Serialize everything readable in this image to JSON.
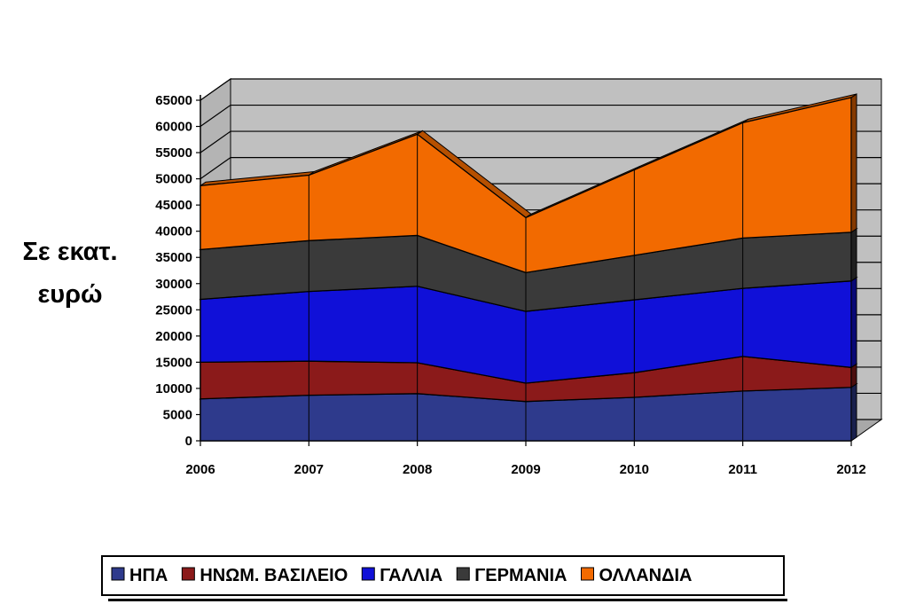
{
  "chart_data": {
    "type": "area",
    "stacked": true,
    "three_d": true,
    "title": "",
    "ylabel": "Σε εκατ. ευρώ",
    "xlabel": "",
    "x": [
      "2006",
      "2007",
      "2008",
      "2009",
      "2010",
      "2011",
      "2012"
    ],
    "ylim": [
      0,
      65000
    ],
    "ytick_step": 5000,
    "yticks": [
      "0",
      "5000",
      "10000",
      "15000",
      "20000",
      "25000",
      "30000",
      "35000",
      "40000",
      "45000",
      "50000",
      "55000",
      "60000",
      "65000"
    ],
    "grid": true,
    "legend_position": "bottom",
    "series": [
      {
        "name": "ΗΠΑ",
        "color": "#2E3A8C",
        "values": [
          8000,
          8700,
          9000,
          7500,
          8300,
          9500,
          10200
        ]
      },
      {
        "name": "ΗΝΩΜ. ΒΑΣΙΛΕΙΟ",
        "color": "#8B1A1A",
        "values": [
          7000,
          6500,
          5900,
          3500,
          4700,
          6600,
          3800
        ]
      },
      {
        "name": "ΓΑΛΛΙΑ",
        "color": "#1010D8",
        "values": [
          12000,
          13300,
          14600,
          13700,
          13900,
          13000,
          16500
        ]
      },
      {
        "name": "ΓΕΡΜΑΝΙΑ",
        "color": "#3A3A3A",
        "values": [
          9500,
          9700,
          9700,
          7400,
          8500,
          9600,
          9300
        ]
      },
      {
        "name": "ΟΛΛΑΝΔΙΑ",
        "color": "#F26A00",
        "values": [
          12200,
          12500,
          19300,
          10500,
          16300,
          22000,
          25700
        ]
      }
    ]
  }
}
